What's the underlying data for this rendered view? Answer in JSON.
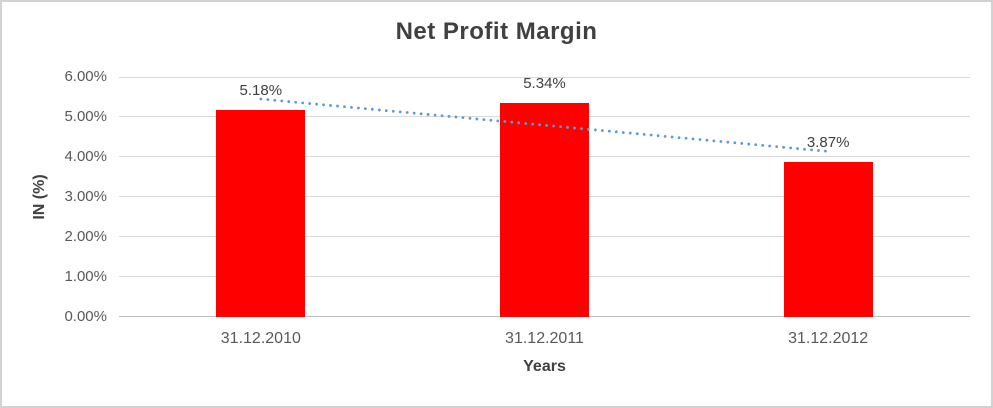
{
  "chart_data": {
    "type": "bar",
    "title": "Net Profit Margin",
    "xlabel": "Years",
    "ylabel": "IN (%)",
    "categories": [
      "31.12.2010",
      "31.12.2011",
      "31.12.2012"
    ],
    "values": [
      5.18,
      5.34,
      3.87
    ],
    "data_labels": [
      "5.18%",
      "5.34%",
      "3.87%"
    ],
    "ylim": [
      0,
      6
    ],
    "ytick_step": 1,
    "ytick_labels": [
      "0.00%",
      "1.00%",
      "2.00%",
      "3.00%",
      "4.00%",
      "5.00%",
      "6.00%"
    ],
    "grid": true,
    "legend_position": "none",
    "bar_color": "#ff0000",
    "trendline": {
      "type": "linear",
      "style": "dotted",
      "color": "#5b9bd5",
      "start_value": 5.45,
      "end_value": 4.14
    },
    "colors": {
      "title_text": "#404040",
      "tick_text": "#595959",
      "gridline": "#d9d9d9",
      "axis_line": "#bfbfbf"
    }
  }
}
